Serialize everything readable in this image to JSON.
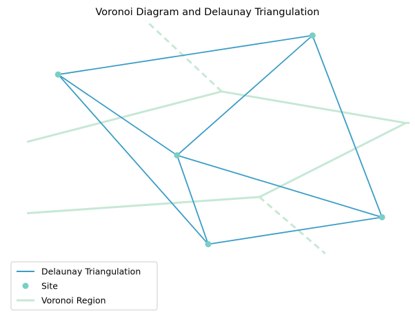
{
  "chart_data": {
    "type": "scatter",
    "title": "Voronoi Diagram and Delaunay Triangulation",
    "xlabel": "",
    "ylabel": "",
    "axes_visible": false,
    "xlim": [
      -0.05,
      1.05
    ],
    "ylim": [
      -0.05,
      1.05
    ],
    "grid": false,
    "legend_position": "lower-left",
    "colors": {
      "delaunay": "#3a9dc5",
      "site": "#79cec6",
      "voronoi": "#c6e8d5"
    },
    "sites": [
      {
        "x": 0.09,
        "y": 0.85
      },
      {
        "x": 0.785,
        "y": 0.995
      },
      {
        "x": 0.415,
        "y": 0.55
      },
      {
        "x": 0.975,
        "y": 0.32
      },
      {
        "x": 0.5,
        "y": 0.22
      }
    ],
    "delaunay_edges": [
      [
        0,
        1
      ],
      [
        1,
        3
      ],
      [
        3,
        4
      ],
      [
        4,
        2
      ],
      [
        2,
        0
      ],
      [
        2,
        1
      ],
      [
        2,
        3
      ],
      [
        0,
        4
      ]
    ],
    "voronoi_vertices": [
      {
        "x": 0.537,
        "y": 0.787
      },
      {
        "x": 1.04,
        "y": 0.67
      },
      {
        "x": 0.64,
        "y": 0.395
      }
    ],
    "voronoi_ridges": [
      {
        "from": {
          "x": 0.537,
          "y": 0.787
        },
        "to": {
          "x": 1.04,
          "y": 0.67
        },
        "style": "solid"
      },
      {
        "from": {
          "x": 1.04,
          "y": 0.67
        },
        "to": {
          "x": 0.64,
          "y": 0.395
        },
        "style": "solid"
      },
      {
        "from": {
          "x": 0.537,
          "y": 0.787
        },
        "to": {
          "x": 0.005,
          "y": 0.6
        },
        "style": "solid"
      },
      {
        "from": {
          "x": 0.64,
          "y": 0.395
        },
        "to": {
          "x": 0.005,
          "y": 0.335
        },
        "style": "solid"
      },
      {
        "from": {
          "x": 0.537,
          "y": 0.787
        },
        "to": {
          "x": 0.33,
          "y": 1.05
        },
        "style": "dashed"
      },
      {
        "from": {
          "x": 1.04,
          "y": 0.67
        },
        "to": {
          "x": 1.08,
          "y": 0.672
        },
        "style": "dashed"
      },
      {
        "from": {
          "x": 0.64,
          "y": 0.395
        },
        "to": {
          "x": 0.82,
          "y": 0.185
        },
        "style": "dashed"
      }
    ],
    "legend": [
      {
        "label": "Delaunay Triangulation",
        "kind": "line",
        "color": "#3a9dc5"
      },
      {
        "label": "Site",
        "kind": "marker",
        "color": "#79cec6"
      },
      {
        "label": "Voronoi Region",
        "kind": "line",
        "color": "#c6e8d5"
      }
    ]
  }
}
